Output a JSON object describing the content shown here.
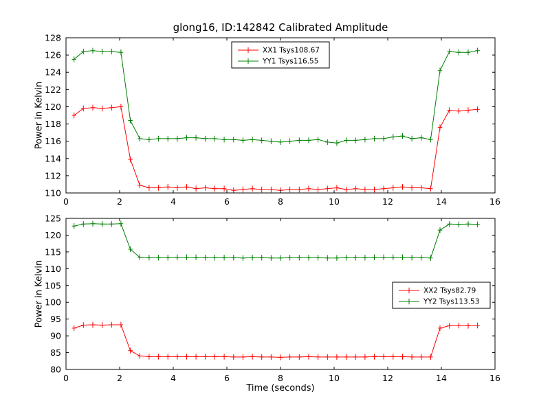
{
  "figure": {
    "title": "glong16, ID:142842 Calibrated Amplitude",
    "xlabel": "Time (seconds)",
    "ylabel": "Power in Kelvin"
  },
  "colors": {
    "xx_series": "#ff0000",
    "yy_series": "#008000",
    "axis": "#000000",
    "background": "#ffffff"
  },
  "chart_data": [
    {
      "type": "line",
      "title": "",
      "xlabel": "",
      "ylabel": "Power in Kelvin",
      "xlim": [
        0,
        16
      ],
      "ylim": [
        110,
        128
      ],
      "xticks": [
        0,
        2,
        4,
        6,
        8,
        10,
        12,
        14,
        16
      ],
      "yticks": [
        110,
        112,
        114,
        116,
        118,
        120,
        122,
        124,
        126,
        128
      ],
      "grid": false,
      "legend_position": "top-center",
      "x": [
        0.3,
        0.65,
        1.0,
        1.35,
        1.7,
        2.05,
        2.4,
        2.75,
        3.1,
        3.45,
        3.8,
        4.15,
        4.5,
        4.85,
        5.2,
        5.55,
        5.9,
        6.25,
        6.6,
        6.95,
        7.3,
        7.65,
        8.0,
        8.35,
        8.7,
        9.05,
        9.4,
        9.75,
        10.1,
        10.45,
        10.8,
        11.15,
        11.5,
        11.85,
        12.2,
        12.55,
        12.9,
        13.25,
        13.6,
        13.95,
        14.3,
        14.65,
        15.0,
        15.35
      ],
      "series": [
        {
          "name": "XX1 Tsys108.67",
          "color": "#ff0000",
          "values": [
            119.0,
            119.8,
            119.9,
            119.8,
            119.9,
            120.0,
            113.9,
            110.9,
            110.6,
            110.6,
            110.7,
            110.6,
            110.7,
            110.5,
            110.6,
            110.5,
            110.5,
            110.3,
            110.4,
            110.5,
            110.4,
            110.4,
            110.3,
            110.4,
            110.4,
            110.5,
            110.4,
            110.5,
            110.6,
            110.4,
            110.5,
            110.4,
            110.4,
            110.5,
            110.6,
            110.7,
            110.6,
            110.6,
            110.5,
            117.6,
            119.6,
            119.5,
            119.6,
            119.7
          ]
        },
        {
          "name": "YY1 Tsys116.55",
          "color": "#008000",
          "values": [
            125.5,
            126.4,
            126.5,
            126.4,
            126.4,
            126.3,
            118.4,
            116.3,
            116.2,
            116.3,
            116.3,
            116.3,
            116.4,
            116.4,
            116.3,
            116.3,
            116.2,
            116.2,
            116.1,
            116.2,
            116.1,
            116.0,
            115.9,
            116.0,
            116.1,
            116.1,
            116.2,
            115.9,
            115.8,
            116.1,
            116.1,
            116.2,
            116.3,
            116.3,
            116.5,
            116.6,
            116.3,
            116.4,
            116.2,
            124.2,
            126.4,
            126.3,
            126.3,
            126.5
          ]
        }
      ]
    },
    {
      "type": "line",
      "title": "",
      "xlabel": "Time (seconds)",
      "ylabel": "Power in Kelvin",
      "xlim": [
        0,
        16
      ],
      "ylim": [
        80,
        125
      ],
      "xticks": [
        0,
        2,
        4,
        6,
        8,
        10,
        12,
        14,
        16
      ],
      "yticks": [
        80,
        85,
        90,
        95,
        100,
        105,
        110,
        115,
        120,
        125
      ],
      "grid": false,
      "legend_position": "right-middle",
      "x": [
        0.3,
        0.65,
        1.0,
        1.35,
        1.7,
        2.05,
        2.4,
        2.75,
        3.1,
        3.45,
        3.8,
        4.15,
        4.5,
        4.85,
        5.2,
        5.55,
        5.9,
        6.25,
        6.6,
        6.95,
        7.3,
        7.65,
        8.0,
        8.35,
        8.7,
        9.05,
        9.4,
        9.75,
        10.1,
        10.45,
        10.8,
        11.15,
        11.5,
        11.85,
        12.2,
        12.55,
        12.9,
        13.25,
        13.6,
        13.95,
        14.3,
        14.65,
        15.0,
        15.35
      ],
      "series": [
        {
          "name": "XX2 Tsys82.79",
          "color": "#ff0000",
          "values": [
            92.3,
            93.2,
            93.3,
            93.2,
            93.3,
            93.3,
            85.6,
            84.0,
            83.8,
            83.8,
            83.8,
            83.8,
            83.8,
            83.8,
            83.8,
            83.8,
            83.8,
            83.7,
            83.7,
            83.8,
            83.7,
            83.7,
            83.6,
            83.7,
            83.7,
            83.8,
            83.7,
            83.7,
            83.7,
            83.7,
            83.7,
            83.7,
            83.8,
            83.8,
            83.8,
            83.8,
            83.7,
            83.7,
            83.7,
            92.3,
            93.0,
            93.1,
            93.0,
            93.1
          ]
        },
        {
          "name": "YY2 Tsys113.53",
          "color": "#008000",
          "values": [
            122.7,
            123.3,
            123.4,
            123.3,
            123.3,
            123.4,
            115.8,
            113.4,
            113.3,
            113.3,
            113.3,
            113.4,
            113.4,
            113.4,
            113.3,
            113.3,
            113.3,
            113.3,
            113.2,
            113.3,
            113.3,
            113.2,
            113.2,
            113.3,
            113.3,
            113.3,
            113.3,
            113.2,
            113.2,
            113.3,
            113.3,
            113.3,
            113.4,
            113.4,
            113.4,
            113.4,
            113.3,
            113.3,
            113.2,
            121.5,
            123.3,
            123.2,
            123.3,
            123.2
          ]
        }
      ]
    }
  ]
}
